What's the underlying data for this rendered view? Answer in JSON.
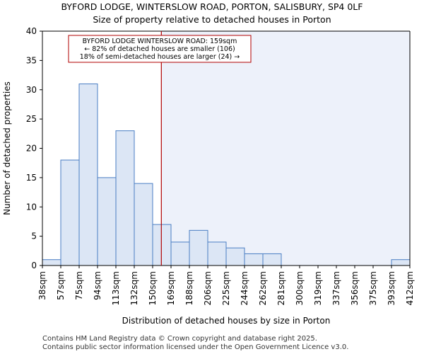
{
  "header": {
    "title": "BYFORD LODGE, WINTERSLOW ROAD, PORTON, SALISBURY, SP4 0LF",
    "subtitle": "Size of property relative to detached houses in Porton"
  },
  "chart_data": {
    "type": "bar",
    "title": "BYFORD LODGE, WINTERSLOW ROAD, PORTON, SALISBURY, SP4 0LF",
    "subtitle": "Size of property relative to detached houses in Porton",
    "xlabel": "Distribution of detached houses by size in Porton",
    "ylabel": "Number of detached properties",
    "ylim": [
      0,
      40
    ],
    "yticks": [
      0,
      5,
      10,
      15,
      20,
      25,
      30,
      35,
      40
    ],
    "bin_edges": [
      38,
      57,
      75,
      94,
      113,
      132,
      150,
      169,
      188,
      206,
      225,
      244,
      262,
      281,
      300,
      319,
      337,
      356,
      375,
      393,
      412
    ],
    "tick_labels": [
      "38sqm",
      "57sqm",
      "75sqm",
      "94sqm",
      "113sqm",
      "132sqm",
      "150sqm",
      "169sqm",
      "188sqm",
      "206sqm",
      "225sqm",
      "244sqm",
      "262sqm",
      "281sqm",
      "300sqm",
      "319sqm",
      "337sqm",
      "356sqm",
      "375sqm",
      "393sqm",
      "412sqm"
    ],
    "values": [
      1,
      18,
      31,
      15,
      23,
      14,
      7,
      4,
      6,
      4,
      3,
      2,
      2,
      0,
      0,
      0,
      0,
      0,
      0,
      1
    ],
    "property_marker": {
      "value": 159,
      "unit": "sqm"
    },
    "annotation": {
      "line1": "BYFORD LODGE WINTERSLOW ROAD: 159sqm",
      "line2": "← 82% of detached houses are smaller (106)",
      "line3": "18% of semi-detached houses are larger (24) →"
    },
    "colors": {
      "bar_fill": "#dce6f5",
      "bar_edge": "#4a7ec4",
      "marker": "#b00000",
      "shade": "#edf1fa"
    }
  },
  "footer": {
    "line1": "Contains HM Land Registry data © Crown copyright and database right 2025.",
    "line2": "Contains public sector information licensed under the Open Government Licence v3.0."
  }
}
